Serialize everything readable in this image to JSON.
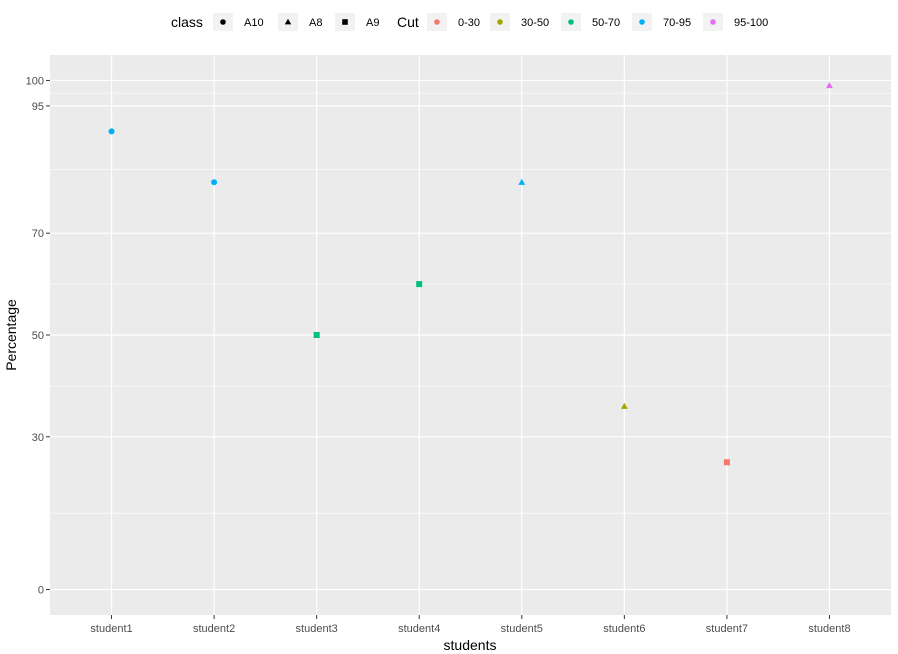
{
  "chart_data": {
    "type": "scatter",
    "title": "",
    "xlabel": "students",
    "ylabel": "Percentage",
    "categories": [
      "student1",
      "student2",
      "student3",
      "student4",
      "student5",
      "student6",
      "student7",
      "student8"
    ],
    "ylim": [
      -5,
      105
    ],
    "yticks": [
      0,
      30,
      50,
      70,
      95,
      100
    ],
    "grid": true,
    "legend_position": "top",
    "points": [
      {
        "x": "student1",
        "y": 90,
        "class": "A10",
        "cut": "70-95"
      },
      {
        "x": "student2",
        "y": 80,
        "class": "A10",
        "cut": "70-95"
      },
      {
        "x": "student3",
        "y": 50,
        "class": "A9",
        "cut": "50-70"
      },
      {
        "x": "student4",
        "y": 60,
        "class": "A9",
        "cut": "50-70"
      },
      {
        "x": "student5",
        "y": 80,
        "class": "A8",
        "cut": "70-95"
      },
      {
        "x": "student6",
        "y": 36,
        "class": "A8",
        "cut": "30-50"
      },
      {
        "x": "student7",
        "y": 25,
        "class": "A9",
        "cut": "0-30"
      },
      {
        "x": "student8",
        "y": 99,
        "class": "A8",
        "cut": "95-100"
      }
    ],
    "legends": {
      "shape": {
        "title": "class",
        "items": [
          {
            "label": "A10",
            "shape": "circle"
          },
          {
            "label": "A8",
            "shape": "triangle"
          },
          {
            "label": "A9",
            "shape": "square"
          }
        ]
      },
      "color": {
        "title": "Cut",
        "items": [
          {
            "label": "0-30",
            "color": "#F8766D"
          },
          {
            "label": "30-50",
            "color": "#A3A500"
          },
          {
            "label": "50-70",
            "color": "#00BF7D"
          },
          {
            "label": "70-95",
            "color": "#00B0F6"
          },
          {
            "label": "95-100",
            "color": "#E76BF3"
          }
        ]
      }
    },
    "colors": {
      "panel_bg": "#EBEBEB",
      "grid": "#FFFFFF",
      "legend_key_bg": "#F2F2F2"
    }
  }
}
